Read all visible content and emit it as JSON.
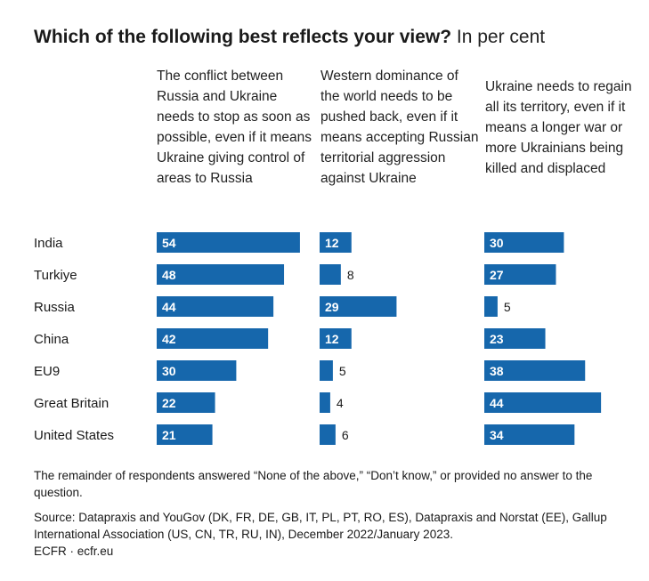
{
  "title": {
    "main": "Which of the following best reflects your view?",
    "sub": "In per cent"
  },
  "colors": {
    "bar": "#1667ac",
    "text": "#1a1a1a"
  },
  "chart_data": {
    "type": "bar",
    "orientation": "horizontal",
    "categories": [
      "India",
      "Turkiye",
      "Russia",
      "China",
      "EU9",
      "Great Britain",
      "United States"
    ],
    "series": [
      {
        "name": "The conflict between Russia and Ukraine needs to stop as soon as possible, even if it means Ukraine giving control of areas to Russia",
        "values": [
          54,
          48,
          44,
          42,
          30,
          22,
          21
        ]
      },
      {
        "name": "Western dominance of the world needs to be pushed back, even if it means accepting Russian territorial aggression against Ukraine",
        "values": [
          12,
          8,
          29,
          12,
          5,
          4,
          6
        ]
      },
      {
        "name": "Ukraine needs to regain all its territory, even if it means a longer war or more Ukrainians being killed and displaced",
        "values": [
          30,
          27,
          5,
          23,
          38,
          44,
          34
        ]
      }
    ],
    "grid": false,
    "legend": "column headers above bars"
  },
  "footer": {
    "note": "The remainder of respondents answered “None of the above,” “Don’t know,” or provided no answer to the question.",
    "source": "Source: Datapraxis and YouGov (DK, FR, DE, GB, IT, PL, PT, RO, ES), Datapraxis and Norstat (EE), Gallup International Association (US, CN, TR, RU, IN), December 2022/January 2023.",
    "credit": "ECFR · ecfr.eu"
  }
}
